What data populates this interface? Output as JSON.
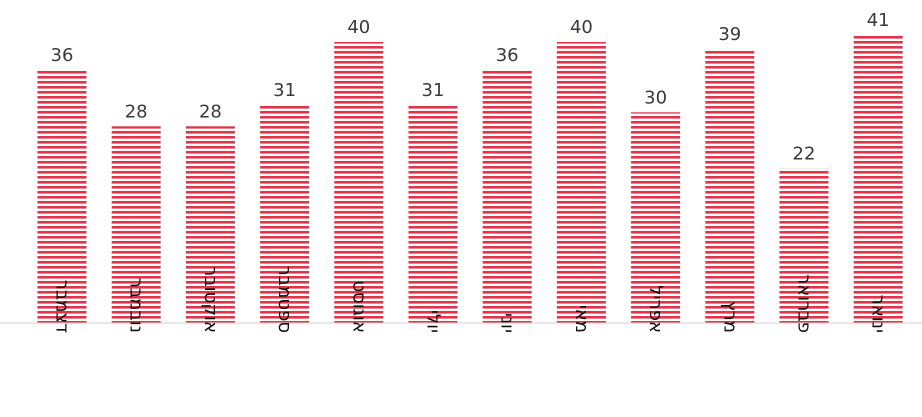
{
  "chart_data": {
    "type": "bar",
    "categories": [
      "דצמבר",
      "נובמבר",
      "אוקטובר",
      "ספטמבר",
      "אוגוסט",
      "יולי",
      "יוני",
      "מאי",
      "אפריל",
      "מרץ",
      "פברואר",
      "ינואר"
    ],
    "values": [
      36,
      28,
      28,
      31,
      40,
      31,
      36,
      40,
      30,
      39,
      22,
      41
    ],
    "title": "",
    "xlabel": "",
    "ylabel": "",
    "ylim": [
      0,
      41
    ],
    "grid": false,
    "legend": "none",
    "bar_pattern": "horizontal-stripes",
    "bar_color": "#e0344a",
    "data_labels": true
  }
}
